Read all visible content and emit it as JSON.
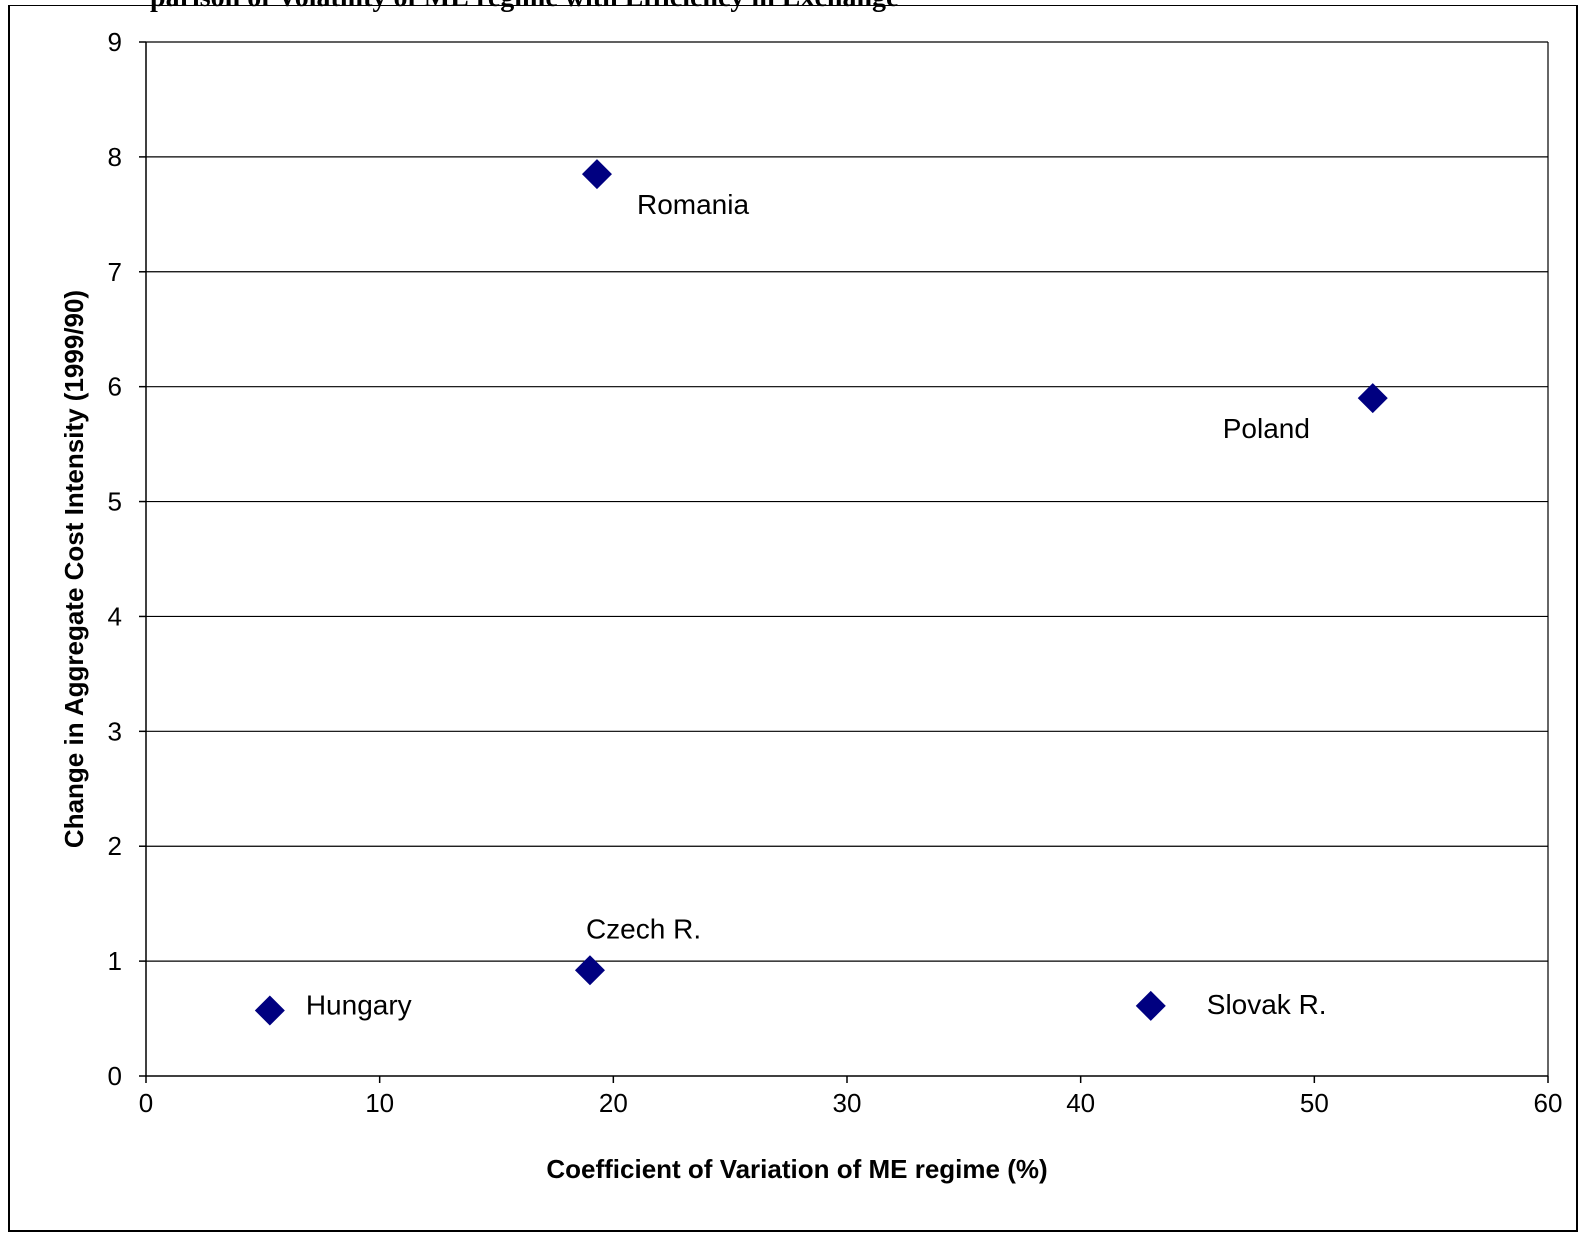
{
  "caption_fragment": "parison of Volatility of ME regime with Efficiency in Exchange",
  "chart_data": {
    "type": "scatter",
    "title": "",
    "xlabel": "Coefficient of Variation of ME regime (%)",
    "ylabel": "Change in Aggregate Cost Intensity (1999/90)",
    "xlim": [
      0,
      60
    ],
    "ylim": [
      0,
      9
    ],
    "xticks": [
      0,
      10,
      20,
      30,
      40,
      50,
      60
    ],
    "yticks": [
      0,
      1,
      2,
      3,
      4,
      5,
      6,
      7,
      8,
      9
    ],
    "grid": "horizontal",
    "legend": "none",
    "marker_color": "#000080",
    "marker": "diamond",
    "points": [
      {
        "label": "Romania",
        "x": 19.3,
        "y": 7.85
      },
      {
        "label": "Poland",
        "x": 52.5,
        "y": 5.9
      },
      {
        "label": "Czech R.",
        "x": 19.0,
        "y": 0.92
      },
      {
        "label": "Hungary",
        "x": 5.3,
        "y": 0.57
      },
      {
        "label": "Slovak R.",
        "x": 43.0,
        "y": 0.61
      }
    ]
  }
}
